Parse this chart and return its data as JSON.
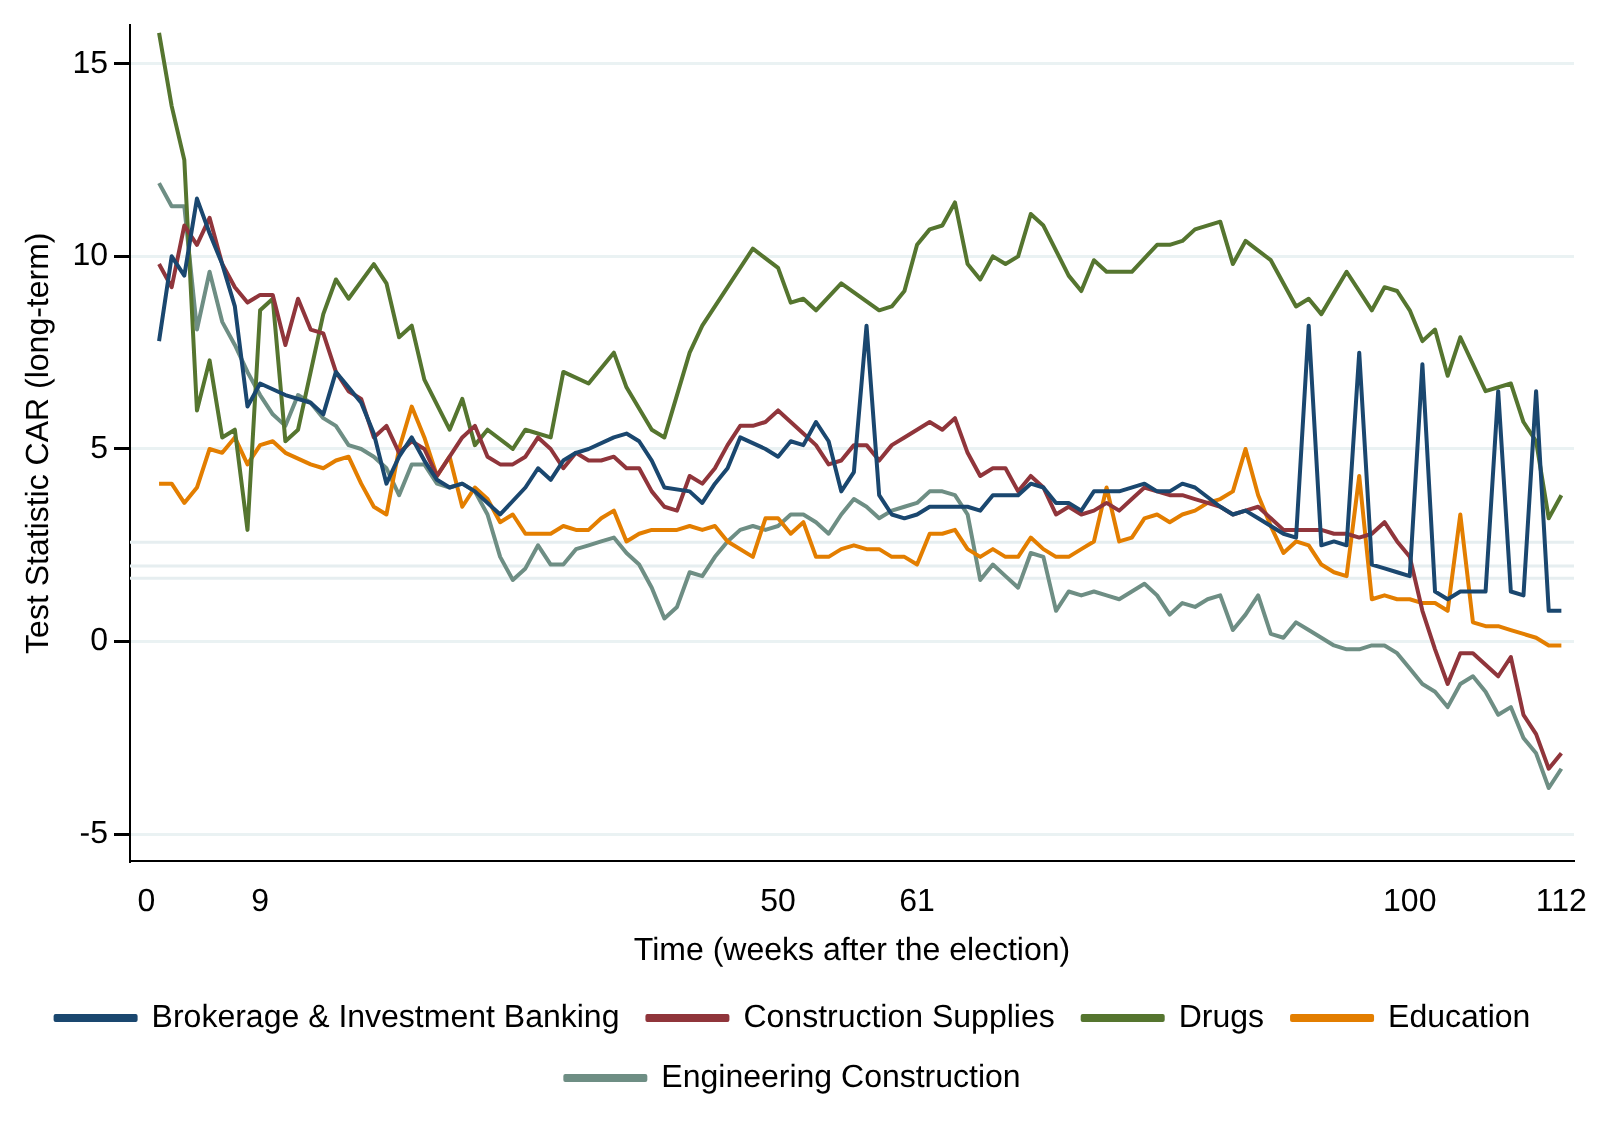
{
  "chart_data": {
    "type": "line",
    "xlabel": "Time (weeks after the election)",
    "ylabel": "Test Statistic CAR (long-term)",
    "xlim": [
      -1.3,
      113
    ],
    "xticks": [
      0,
      9,
      50,
      61,
      100,
      112
    ],
    "ylim": [
      -5.7,
      16
    ],
    "yticks": [
      -5,
      0,
      5,
      10,
      15
    ],
    "grid": "y",
    "legend": "bottom",
    "marker": "none",
    "line_style": "solid",
    "ref_lines": [
      {
        "axis": "y",
        "value": 1.645,
        "color": "#e6eef0"
      },
      {
        "axis": "y",
        "value": 1.96,
        "color": "#e6eef0"
      },
      {
        "axis": "y",
        "value": 2.576,
        "color": "#e6eef0"
      }
    ],
    "series": [
      {
        "name": "Brokerage & Investment Banking",
        "color": "#1a476f",
        "x": [
          1,
          2,
          3,
          4,
          5,
          6,
          7,
          8,
          9,
          11,
          13,
          14,
          15,
          16,
          17,
          18,
          19,
          20,
          21,
          22,
          23,
          24,
          25,
          26,
          28,
          30,
          31,
          32,
          33,
          34,
          35,
          37,
          38,
          39,
          40,
          41,
          43,
          44,
          45,
          46,
          47,
          49,
          50,
          51,
          52,
          53,
          54,
          55,
          56,
          57,
          58,
          59,
          60,
          61,
          62,
          63,
          65,
          66,
          67,
          69,
          70,
          71,
          72,
          73,
          74,
          75,
          77,
          79,
          80,
          81,
          82,
          83,
          85,
          86,
          87,
          88,
          89,
          90,
          91,
          92,
          93,
          94,
          95,
          96,
          97,
          98,
          99,
          100,
          101,
          102,
          103,
          104,
          105,
          106,
          107,
          108,
          109,
          110,
          111,
          112
        ],
        "values": [
          7.8,
          10.0,
          9.5,
          11.5,
          10.6,
          9.8,
          8.7,
          6.1,
          6.7,
          6.4,
          6.2,
          5.9,
          7.0,
          6.6,
          6.2,
          5.4,
          4.1,
          4.8,
          5.3,
          4.7,
          4.2,
          4.0,
          4.1,
          3.9,
          3.3,
          4.0,
          4.5,
          4.2,
          4.7,
          4.9,
          5.0,
          5.3,
          5.4,
          5.2,
          4.7,
          4.0,
          3.9,
          3.6,
          4.1,
          4.5,
          5.3,
          5.0,
          4.8,
          5.2,
          5.1,
          5.7,
          5.2,
          3.9,
          4.4,
          8.2,
          3.8,
          3.3,
          3.2,
          3.3,
          3.5,
          3.5,
          3.5,
          3.4,
          3.8,
          3.8,
          4.1,
          4.0,
          3.6,
          3.6,
          3.4,
          3.9,
          3.9,
          4.1,
          3.9,
          3.9,
          4.1,
          4.0,
          3.5,
          3.3,
          3.4,
          3.2,
          3.0,
          2.8,
          2.7,
          8.2,
          2.5,
          2.6,
          2.5,
          7.5,
          2.0,
          1.9,
          1.8,
          1.7,
          7.2,
          1.3,
          1.1,
          1.3,
          1.3,
          1.3,
          6.5,
          1.3,
          1.2,
          6.5,
          0.8,
          0.8
        ]
      },
      {
        "name": "Construction Supplies",
        "color": "#90353b",
        "x": [
          1,
          2,
          3,
          4,
          5,
          6,
          7,
          8,
          9,
          10,
          11,
          12,
          13,
          14,
          15,
          16,
          17,
          18,
          19,
          20,
          21,
          22,
          23,
          24,
          25,
          26,
          27,
          28,
          29,
          30,
          31,
          32,
          33,
          34,
          35,
          36,
          37,
          38,
          39,
          40,
          41,
          42,
          43,
          44,
          45,
          46,
          47,
          48,
          49,
          50,
          51,
          52,
          53,
          54,
          55,
          56,
          57,
          58,
          59,
          60,
          61,
          62,
          63,
          64,
          65,
          66,
          67,
          68,
          69,
          70,
          71,
          72,
          73,
          74,
          75,
          76,
          77,
          78,
          79,
          80,
          81,
          82,
          83,
          84,
          85,
          86,
          87,
          88,
          89,
          90,
          91,
          92,
          93,
          94,
          95,
          96,
          97,
          98,
          99,
          100,
          101,
          102,
          103,
          104,
          105,
          106,
          107,
          108,
          109,
          110,
          111,
          112
        ],
        "values": [
          9.8,
          9.2,
          10.8,
          10.3,
          11.0,
          9.8,
          9.2,
          8.8,
          9.0,
          9.0,
          7.7,
          8.9,
          8.1,
          8.0,
          7.0,
          6.5,
          6.3,
          5.3,
          5.6,
          4.9,
          5.2,
          5.0,
          4.3,
          4.8,
          5.3,
          5.6,
          4.8,
          4.6,
          4.6,
          4.8,
          5.3,
          5.0,
          4.5,
          4.9,
          4.7,
          4.7,
          4.8,
          4.5,
          4.5,
          3.9,
          3.5,
          3.4,
          4.3,
          4.1,
          4.5,
          5.1,
          5.6,
          5.6,
          5.7,
          6.0,
          5.7,
          5.4,
          5.1,
          4.6,
          4.7,
          5.1,
          5.1,
          4.7,
          5.1,
          5.3,
          5.5,
          5.7,
          5.5,
          5.8,
          4.9,
          4.3,
          4.5,
          4.5,
          3.9,
          4.3,
          4.0,
          3.3,
          3.5,
          3.3,
          3.4,
          3.6,
          3.4,
          3.7,
          4.0,
          3.9,
          3.8,
          3.8,
          3.7,
          3.6,
          3.5,
          3.3,
          3.4,
          3.5,
          3.2,
          2.9,
          2.9,
          2.9,
          2.9,
          2.8,
          2.8,
          2.7,
          2.8,
          3.1,
          2.6,
          2.2,
          0.8,
          -0.2,
          -1.1,
          -0.3,
          -0.3,
          -0.6,
          -0.9,
          -0.4,
          -1.9,
          -2.4,
          -3.3,
          -2.9
        ]
      },
      {
        "name": "Drugs",
        "color": "#55752f",
        "x": [
          1,
          2,
          3,
          4,
          5,
          6,
          7,
          8,
          9,
          10,
          11,
          12,
          14,
          15,
          16,
          18,
          19,
          20,
          21,
          22,
          24,
          25,
          26,
          27,
          29,
          30,
          32,
          33,
          35,
          37,
          38,
          40,
          41,
          43,
          44,
          45,
          48,
          50,
          51,
          52,
          53,
          55,
          58,
          59,
          60,
          61,
          62,
          63,
          64,
          65,
          66,
          67,
          68,
          69,
          70,
          71,
          73,
          74,
          75,
          76,
          78,
          80,
          81,
          82,
          83,
          85,
          86,
          87,
          89,
          91,
          92,
          93,
          95,
          97,
          98,
          99,
          100,
          101,
          102,
          103,
          104,
          106,
          108,
          109,
          110,
          111,
          112
        ],
        "values": [
          15.8,
          13.9,
          12.5,
          6.0,
          7.3,
          5.3,
          5.5,
          2.9,
          8.6,
          8.9,
          5.2,
          5.5,
          8.5,
          9.4,
          8.9,
          9.8,
          9.3,
          7.9,
          8.2,
          6.8,
          5.5,
          6.3,
          5.1,
          5.5,
          5.0,
          5.5,
          5.3,
          7.0,
          6.7,
          7.5,
          6.6,
          5.5,
          5.3,
          7.5,
          8.2,
          8.7,
          10.2,
          9.7,
          8.8,
          8.9,
          8.6,
          9.3,
          8.6,
          8.7,
          9.1,
          10.3,
          10.7,
          10.8,
          11.4,
          9.8,
          9.4,
          10.0,
          9.8,
          10.0,
          11.1,
          10.8,
          9.5,
          9.1,
          9.9,
          9.6,
          9.6,
          10.3,
          10.3,
          10.4,
          10.7,
          10.9,
          9.8,
          10.4,
          9.9,
          8.7,
          8.9,
          8.5,
          9.6,
          8.6,
          9.2,
          9.1,
          8.6,
          7.8,
          8.1,
          6.9,
          7.9,
          6.5,
          6.7,
          5.7,
          5.2,
          3.2,
          3.8
        ]
      },
      {
        "name": "Education",
        "color": "#e37e00",
        "x": [
          1,
          2,
          3,
          4,
          5,
          6,
          7,
          8,
          9,
          10,
          11,
          13,
          14,
          15,
          16,
          17,
          18,
          19,
          20,
          21,
          22,
          23,
          24,
          25,
          26,
          27,
          28,
          29,
          30,
          31,
          32,
          33,
          34,
          35,
          36,
          37,
          38,
          39,
          40,
          41,
          42,
          43,
          44,
          45,
          46,
          48,
          49,
          50,
          51,
          52,
          53,
          54,
          55,
          56,
          57,
          58,
          59,
          60,
          61,
          62,
          63,
          64,
          65,
          66,
          67,
          68,
          69,
          70,
          71,
          72,
          73,
          74,
          75,
          76,
          77,
          78,
          79,
          80,
          81,
          82,
          83,
          84,
          85,
          86,
          87,
          88,
          89,
          90,
          91,
          92,
          93,
          94,
          95,
          96,
          97,
          98,
          99,
          100,
          101,
          102,
          103,
          104,
          105,
          106,
          107,
          108,
          109,
          110,
          111,
          112
        ],
        "values": [
          4.1,
          4.1,
          3.6,
          4.0,
          5.0,
          4.9,
          5.3,
          4.6,
          5.1,
          5.2,
          4.9,
          4.6,
          4.5,
          4.7,
          4.8,
          4.1,
          3.5,
          3.3,
          5.0,
          6.1,
          5.3,
          4.3,
          4.8,
          3.5,
          4.0,
          3.7,
          3.1,
          3.3,
          2.8,
          2.8,
          2.8,
          3.0,
          2.9,
          2.9,
          3.2,
          3.4,
          2.6,
          2.8,
          2.9,
          2.9,
          2.9,
          3.0,
          2.9,
          3.0,
          2.6,
          2.2,
          3.2,
          3.2,
          2.8,
          3.1,
          2.2,
          2.2,
          2.4,
          2.5,
          2.4,
          2.4,
          2.2,
          2.2,
          2.0,
          2.8,
          2.8,
          2.9,
          2.4,
          2.2,
          2.4,
          2.2,
          2.2,
          2.7,
          2.4,
          2.2,
          2.2,
          2.4,
          2.6,
          4.0,
          2.6,
          2.7,
          3.2,
          3.3,
          3.1,
          3.3,
          3.4,
          3.6,
          3.7,
          3.9,
          5.0,
          3.8,
          3.0,
          2.3,
          2.6,
          2.5,
          2.0,
          1.8,
          1.7,
          4.3,
          1.1,
          1.2,
          1.1,
          1.1,
          1.0,
          1.0,
          0.8,
          3.3,
          0.5,
          0.4,
          0.4,
          0.3,
          0.2,
          0.1,
          -0.1,
          -0.1
        ]
      },
      {
        "name": "Engineering Construction",
        "color": "#6e8e84",
        "x": [
          1,
          2,
          3,
          4,
          5,
          6,
          7,
          8,
          9,
          10,
          11,
          12,
          13,
          14,
          15,
          16,
          17,
          18,
          19,
          20,
          21,
          22,
          23,
          24,
          25,
          26,
          27,
          28,
          29,
          30,
          31,
          32,
          33,
          34,
          35,
          36,
          37,
          38,
          39,
          40,
          41,
          42,
          43,
          44,
          45,
          46,
          47,
          48,
          49,
          50,
          51,
          52,
          53,
          54,
          55,
          56,
          57,
          58,
          59,
          60,
          61,
          62,
          63,
          64,
          65,
          66,
          67,
          68,
          69,
          70,
          71,
          72,
          73,
          74,
          75,
          76,
          77,
          78,
          79,
          80,
          81,
          82,
          83,
          84,
          85,
          86,
          87,
          88,
          89,
          90,
          91,
          92,
          93,
          94,
          95,
          96,
          97,
          98,
          99,
          100,
          101,
          102,
          103,
          104,
          105,
          106,
          107,
          108,
          109,
          110,
          111,
          112
        ],
        "values": [
          11.9,
          11.3,
          11.3,
          8.1,
          9.6,
          8.3,
          7.7,
          7.0,
          6.4,
          5.9,
          5.6,
          6.4,
          6.2,
          5.8,
          5.6,
          5.1,
          5.0,
          4.8,
          4.5,
          3.8,
          4.6,
          4.6,
          4.1,
          4.0,
          4.1,
          3.9,
          3.3,
          2.2,
          1.6,
          1.9,
          2.5,
          2.0,
          2.0,
          2.4,
          2.5,
          2.6,
          2.7,
          2.3,
          2.0,
          1.4,
          0.6,
          0.9,
          1.8,
          1.7,
          2.2,
          2.6,
          2.9,
          3.0,
          2.9,
          3.0,
          3.3,
          3.3,
          3.1,
          2.8,
          3.3,
          3.7,
          3.5,
          3.2,
          3.4,
          3.5,
          3.6,
          3.9,
          3.9,
          3.8,
          3.3,
          1.6,
          2.0,
          1.7,
          1.4,
          2.3,
          2.2,
          0.8,
          1.3,
          1.2,
          1.3,
          1.2,
          1.1,
          1.3,
          1.5,
          1.2,
          0.7,
          1.0,
          0.9,
          1.1,
          1.2,
          0.3,
          0.7,
          1.2,
          0.2,
          0.1,
          0.5,
          0.3,
          0.1,
          -0.1,
          -0.2,
          -0.2,
          -0.1,
          -0.1,
          -0.3,
          -0.7,
          -1.1,
          -1.3,
          -1.7,
          -1.1,
          -0.9,
          -1.3,
          -1.9,
          -1.7,
          -2.5,
          -2.9,
          -3.8,
          -3.3
        ]
      }
    ]
  }
}
